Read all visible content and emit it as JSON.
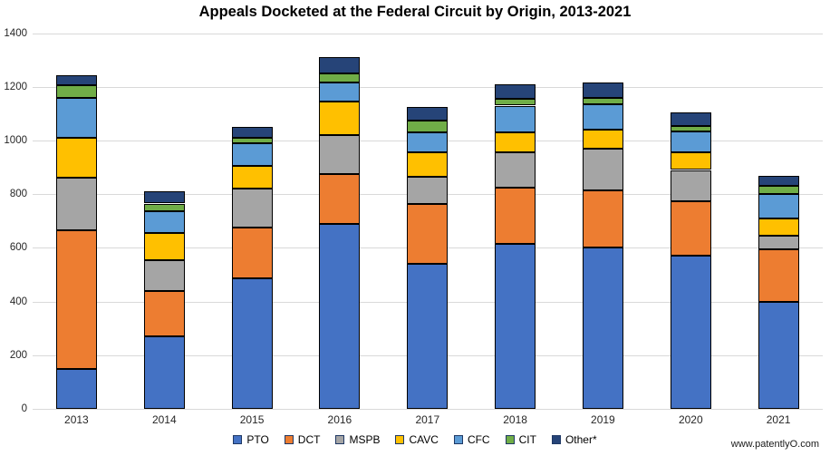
{
  "title": "Appeals Docketed at the Federal Circuit by Origin, 2013-2021",
  "watermark": "www.patentlyO.com",
  "chart_data": {
    "type": "bar",
    "stacked": true,
    "title": "Appeals Docketed at the Federal Circuit by Origin, 2013-2021",
    "categories": [
      "2013",
      "2014",
      "2015",
      "2016",
      "2017",
      "2018",
      "2019",
      "2020",
      "2021"
    ],
    "series": [
      {
        "name": "PTO",
        "color": "#4472C4",
        "values": [
          150,
          270,
          485,
          690,
          540,
          615,
          600,
          570,
          400
        ]
      },
      {
        "name": "DCT",
        "color": "#ED7D31",
        "values": [
          515,
          170,
          190,
          185,
          225,
          210,
          215,
          205,
          195
        ]
      },
      {
        "name": "MSPB",
        "color": "#A5A5A5",
        "values": [
          195,
          115,
          145,
          145,
          100,
          130,
          155,
          115,
          50
        ]
      },
      {
        "name": "CAVC",
        "color": "#FFC000",
        "values": [
          150,
          100,
          85,
          125,
          90,
          75,
          70,
          65,
          65
        ]
      },
      {
        "name": "CFC",
        "color": "#5B9BD5",
        "values": [
          150,
          80,
          85,
          70,
          75,
          100,
          95,
          80,
          90
        ]
      },
      {
        "name": "CIT",
        "color": "#70AD47",
        "values": [
          45,
          30,
          20,
          35,
          45,
          25,
          25,
          20,
          30
        ]
      },
      {
        "name": "Other*",
        "color": "#264478",
        "values": [
          40,
          45,
          40,
          60,
          50,
          55,
          55,
          50,
          40
        ]
      }
    ],
    "stack_totals": [
      1245,
      810,
      1050,
      1310,
      1125,
      1210,
      1215,
      1105,
      870
    ],
    "xlabel": "",
    "ylabel": "",
    "ylim": [
      0,
      1400
    ],
    "yticks": [
      0,
      200,
      400,
      600,
      800,
      1000,
      1200,
      1400
    ],
    "grid": true,
    "legend_position": "bottom"
  },
  "style": {
    "background": "#FFFFFF",
    "gridline_color": "#D9D9D9",
    "bar_border_color": "#000000",
    "axis_text_color": "#262626",
    "title_color": "#000000"
  }
}
